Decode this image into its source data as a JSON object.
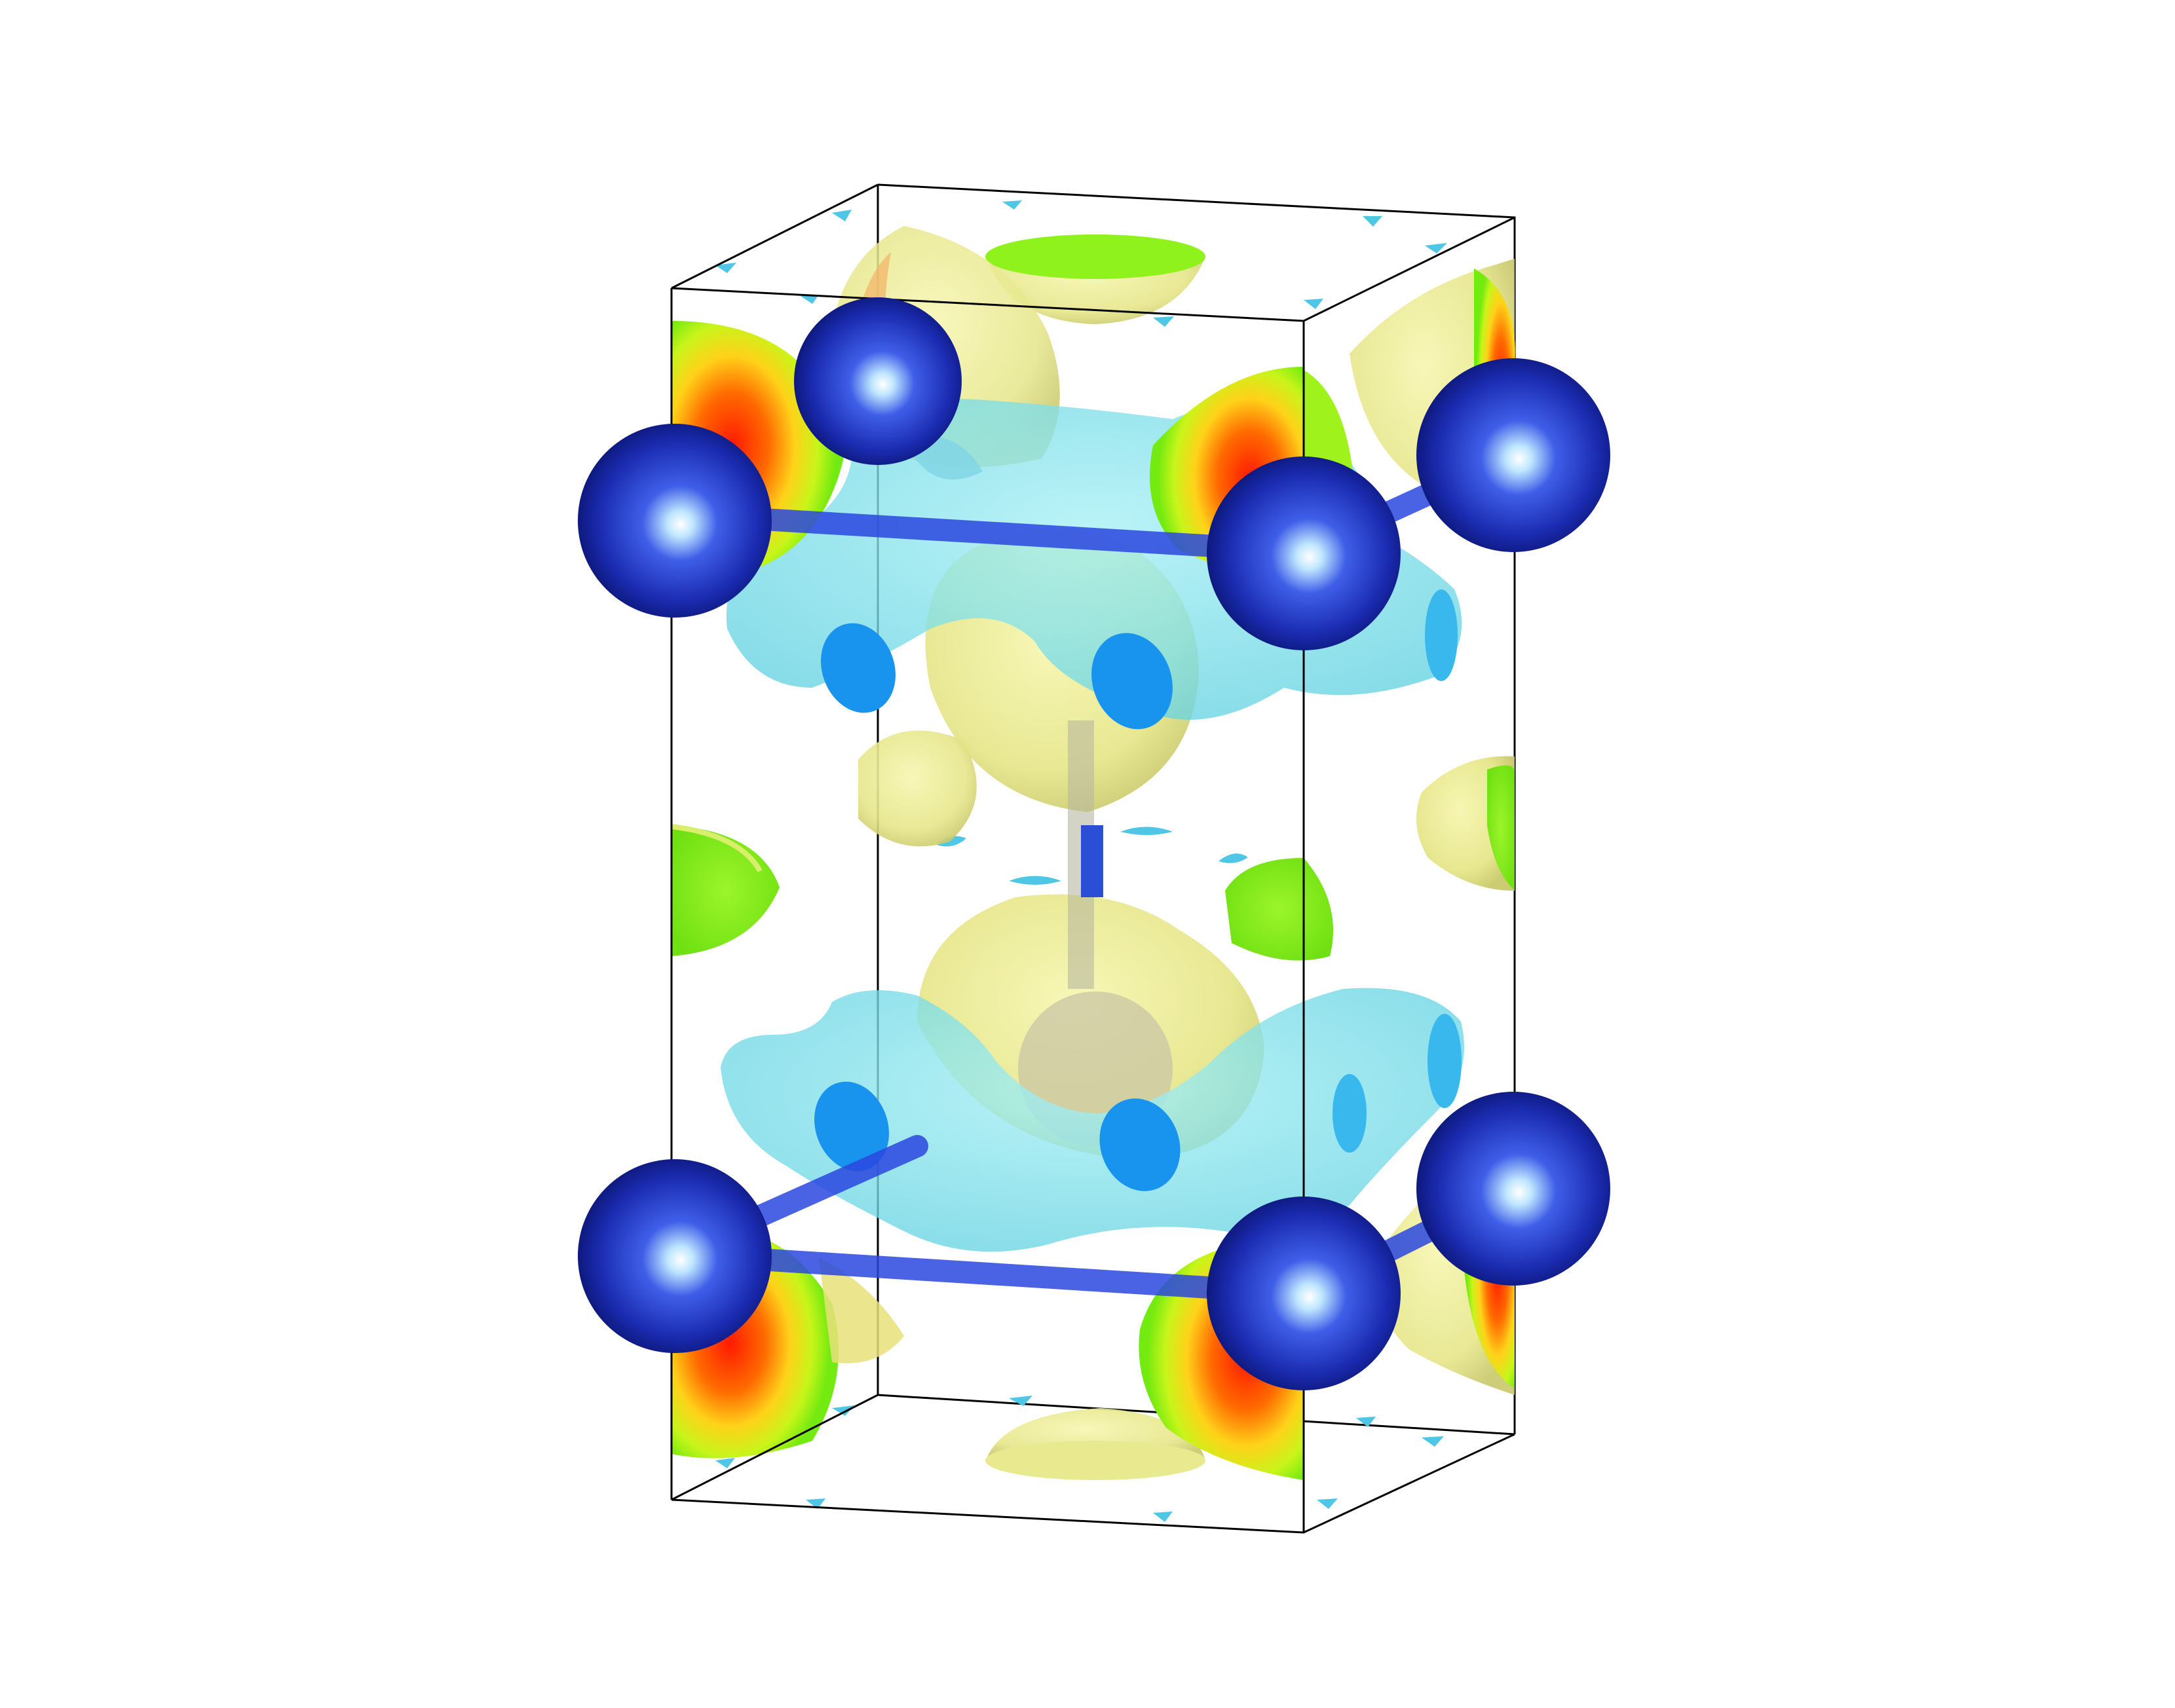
{
  "viewer": {
    "background": "#ffffff",
    "cell_edge_color": "#000000",
    "colors": {
      "atom": "#1f2fb8",
      "atom_highlight": "#ffffff",
      "bond": "#2a4fd6",
      "depletion_isosurface": "#6fe0ea",
      "depletion_dark": "#1a8fe8",
      "accumulation_isosurface": "#eef08a",
      "section_outer": "#7ef31a",
      "section_mid": "#ffe019",
      "section_core": "#ff2a00"
    },
    "elements": {
      "atom_count_visible": 8,
      "cell": "unit-cell-box"
    }
  }
}
